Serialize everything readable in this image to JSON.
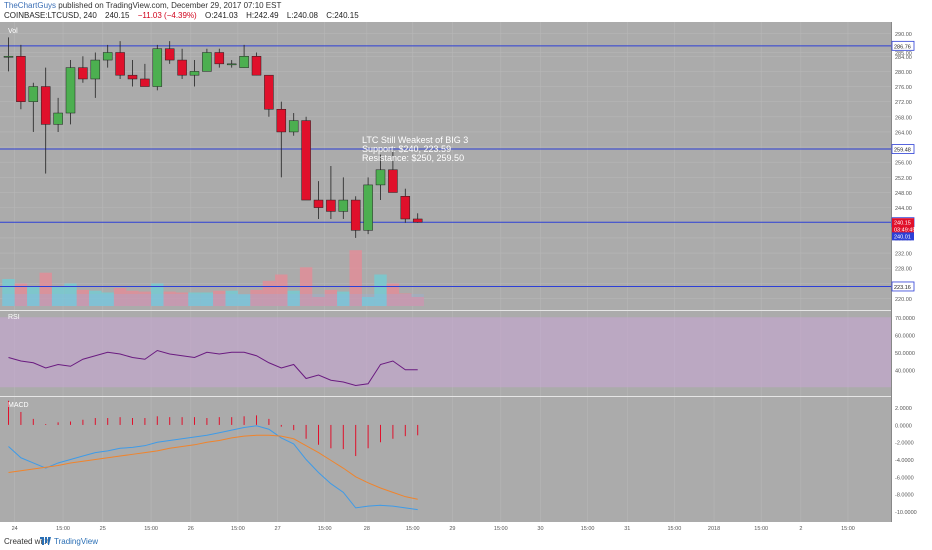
{
  "header": {
    "author": "TheChartGuys",
    "published": "published on TradingView.com, December 29, 2017 07:10 EST",
    "symbol": "COINBASE:LTCUSD, 240",
    "last": "240.15",
    "change": "−11.03 (−4.39%)",
    "open": "O:241.03",
    "high": "H:242.49",
    "low": "L:240.08",
    "close": "C:240.15"
  },
  "footer": {
    "created_with": "Created with",
    "brand": "TradingView"
  },
  "colors": {
    "background": "#ababab",
    "up": "#4caf50",
    "down": "#e0102b",
    "level_line": "#2d3fd6",
    "rsi_line": "#6a1b80",
    "rsi_band": "#c8a6d6",
    "macd_line": "#3e9be8",
    "signal_line": "#f0842c",
    "macd_hist": "#e0102b"
  },
  "annotation": {
    "line1": "LTC Still Weakest of BIG 3",
    "line2": "Support: $240, 223.59",
    "line3": "Resistance: $250, 259.50"
  },
  "panels": {
    "vol_label": "Vol",
    "rsi_label": "RSI",
    "macd_label": "MACD"
  },
  "chart_data": {
    "type": "candlestick",
    "price_axis_ticks": [
      "290.00",
      "285.00",
      "284.00",
      "280.00",
      "276.00",
      "272.00",
      "268.00",
      "264.00",
      "260.00",
      "256.00",
      "252.00",
      "248.00",
      "244.00",
      "236.00",
      "232.00",
      "228.00",
      "224.00",
      "220.00"
    ],
    "price_ylim": [
      218,
      292
    ],
    "levels": [
      {
        "label": "286.76",
        "value": 286.76
      },
      {
        "label": "259.48",
        "value": 259.48
      },
      {
        "label": "240.15",
        "value": 240.15
      },
      {
        "label": "223.16",
        "value": 223.16
      }
    ],
    "price_tags": [
      {
        "label": "240.15",
        "value": 240.15,
        "color": "#e0102b"
      },
      {
        "label": "03:49:45",
        "value": 238.3,
        "color": "#e0102b"
      },
      {
        "label": "240.01",
        "value": 236.4,
        "color": "#2d3fd6"
      }
    ],
    "candles": [
      {
        "o": 284,
        "h": 289,
        "l": 280,
        "c": 284
      },
      {
        "o": 284,
        "h": 287,
        "l": 270,
        "c": 272
      },
      {
        "o": 272,
        "h": 277,
        "l": 264,
        "c": 276
      },
      {
        "o": 276,
        "h": 281,
        "l": 253,
        "c": 266
      },
      {
        "o": 266,
        "h": 273,
        "l": 264,
        "c": 269
      },
      {
        "o": 269,
        "h": 283,
        "l": 266,
        "c": 281
      },
      {
        "o": 281,
        "h": 284,
        "l": 277,
        "c": 278
      },
      {
        "o": 278,
        "h": 285,
        "l": 273,
        "c": 283
      },
      {
        "o": 283,
        "h": 287,
        "l": 281,
        "c": 285
      },
      {
        "o": 285,
        "h": 288,
        "l": 278,
        "c": 279
      },
      {
        "o": 279,
        "h": 283,
        "l": 276,
        "c": 278
      },
      {
        "o": 278,
        "h": 282,
        "l": 276,
        "c": 276
      },
      {
        "o": 276,
        "h": 287,
        "l": 275,
        "c": 286
      },
      {
        "o": 286,
        "h": 288,
        "l": 282,
        "c": 283
      },
      {
        "o": 283,
        "h": 286,
        "l": 278,
        "c": 279
      },
      {
        "o": 279,
        "h": 283,
        "l": 276,
        "c": 280
      },
      {
        "o": 280,
        "h": 286,
        "l": 280,
        "c": 285
      },
      {
        "o": 285,
        "h": 286,
        "l": 281,
        "c": 282
      },
      {
        "o": 282,
        "h": 283,
        "l": 281,
        "c": 282
      },
      {
        "o": 281,
        "h": 287,
        "l": 281,
        "c": 284
      },
      {
        "o": 284,
        "h": 285,
        "l": 279,
        "c": 279
      },
      {
        "o": 279,
        "h": 279,
        "l": 268,
        "c": 270
      },
      {
        "o": 270,
        "h": 272,
        "l": 252,
        "c": 264
      },
      {
        "o": 264,
        "h": 269,
        "l": 263,
        "c": 267
      },
      {
        "o": 267,
        "h": 268,
        "l": 246,
        "c": 246
      },
      {
        "o": 246,
        "h": 251,
        "l": 241,
        "c": 244
      },
      {
        "o": 246,
        "h": 255,
        "l": 241,
        "c": 243
      },
      {
        "o": 243,
        "h": 252,
        "l": 241,
        "c": 246
      },
      {
        "o": 246,
        "h": 247,
        "l": 236,
        "c": 238
      },
      {
        "o": 238,
        "h": 252,
        "l": 237,
        "c": 250
      },
      {
        "o": 250,
        "h": 258,
        "l": 246,
        "c": 254
      },
      {
        "o": 254,
        "h": 259,
        "l": 248,
        "c": 248
      },
      {
        "o": 247,
        "h": 249,
        "l": 240,
        "c": 241
      },
      {
        "o": 241,
        "h": 242.5,
        "l": 240,
        "c": 240.15
      }
    ],
    "volume": [
      30,
      25,
      22,
      37,
      22,
      25,
      18,
      17,
      15,
      20,
      17,
      16,
      25,
      16,
      15,
      15,
      15,
      17,
      17,
      13,
      18,
      28,
      35,
      17,
      43,
      10,
      18,
      16,
      62,
      10,
      35,
      25,
      14,
      10
    ],
    "rsi": [
      47,
      45,
      44,
      41,
      43,
      42,
      46,
      48,
      50,
      49,
      47,
      46,
      51,
      49,
      48,
      47,
      50,
      49,
      50,
      50,
      48,
      44,
      41,
      43,
      35,
      37,
      34,
      33,
      31,
      32,
      43,
      45,
      40,
      40
    ],
    "rsi_ticks": [
      "70.0000",
      "60.0000",
      "50.0000",
      "40.0000"
    ],
    "rsi_ylim": [
      25,
      73
    ],
    "macd": [
      -2.5,
      -3.8,
      -4.4,
      -5.0,
      -4.4,
      -4.0,
      -3.6,
      -3.2,
      -3.0,
      -2.7,
      -2.6,
      -2.4,
      -2.0,
      -1.8,
      -1.6,
      -1.4,
      -1.2,
      -0.9,
      -0.6,
      -0.3,
      -0.1,
      -0.5,
      -1.5,
      -2.2,
      -4.0,
      -5.5,
      -6.8,
      -7.8,
      -9.6,
      -9.4,
      -9.3,
      -9.4,
      -9.6,
      -9.8
    ],
    "signal": [
      -5.5,
      -5.3,
      -5.1,
      -4.9,
      -4.7,
      -4.4,
      -4.2,
      -4.0,
      -3.8,
      -3.6,
      -3.4,
      -3.2,
      -3.0,
      -2.7,
      -2.5,
      -2.3,
      -2.0,
      -1.8,
      -1.5,
      -1.3,
      -1.2,
      -1.2,
      -1.3,
      -1.6,
      -2.4,
      -3.2,
      -4.1,
      -5.0,
      -6.0,
      -6.7,
      -7.3,
      -7.8,
      -8.3,
      -8.6
    ],
    "hist": [
      2.8,
      1.5,
      0.7,
      0.1,
      0.3,
      0.4,
      0.6,
      0.8,
      0.8,
      0.9,
      0.8,
      0.8,
      1.0,
      0.9,
      0.9,
      0.9,
      0.8,
      0.9,
      0.9,
      1.0,
      1.1,
      0.7,
      -0.2,
      -0.6,
      -1.6,
      -2.3,
      -2.7,
      -2.8,
      -3.6,
      -2.7,
      -2.0,
      -1.6,
      -1.3,
      -1.2
    ],
    "macd_ticks": [
      "2.0000",
      "0.0000",
      "-2.0000",
      "-4.0000",
      "-6.0000",
      "-8.0000",
      "-10.0000"
    ],
    "macd_ylim": [
      -11,
      3
    ],
    "x_ticks": [
      {
        "label": "24",
        "i": 0.5
      },
      {
        "label": "15:00",
        "i": 4.4
      },
      {
        "label": "25",
        "i": 7.6
      },
      {
        "label": "15:00",
        "i": 11.5
      },
      {
        "label": "26",
        "i": 14.7
      },
      {
        "label": "15:00",
        "i": 18.5
      },
      {
        "label": "27",
        "i": 21.7
      },
      {
        "label": "15:00",
        "i": 25.5
      },
      {
        "label": "28",
        "i": 28.9
      },
      {
        "label": "15:00",
        "i": 32.6
      },
      {
        "label": "29",
        "i": 35.8
      },
      {
        "label": "15:00",
        "i": 39.7
      },
      {
        "label": "30",
        "i": 42.9
      },
      {
        "label": "15:00",
        "i": 46.7
      },
      {
        "label": "31",
        "i": 49.9
      },
      {
        "label": "15:00",
        "i": 53.7
      },
      {
        "label": "2018",
        "i": 56.9
      },
      {
        "label": "15:00",
        "i": 60.7
      },
      {
        "label": "2",
        "i": 63.9
      },
      {
        "label": "15:00",
        "i": 67.7
      }
    ]
  }
}
